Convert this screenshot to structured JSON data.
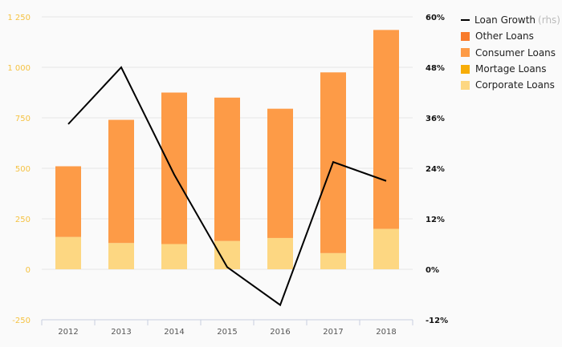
{
  "chart_data": {
    "type": "bar",
    "stacked": true,
    "categories": [
      "2012",
      "2013",
      "2014",
      "2015",
      "2016",
      "2017",
      "2018"
    ],
    "series": [
      {
        "name": "Corporate Loans",
        "color": "#fdd782",
        "values": [
          160,
          130,
          125,
          140,
          155,
          80,
          200
        ]
      },
      {
        "name": "Mortage Loans",
        "color": "#f7ad08",
        "values": [
          0,
          0,
          0,
          0,
          0,
          0,
          0
        ]
      },
      {
        "name": "Consumer Loans",
        "color": "#fd9b47",
        "values": [
          350,
          610,
          750,
          710,
          640,
          895,
          985
        ]
      },
      {
        "name": "Other Loans",
        "color": "#f87b2c",
        "values": [
          0,
          0,
          0,
          0,
          0,
          0,
          0
        ]
      }
    ],
    "line_series": {
      "name": "Loan Growth",
      "axis": "right",
      "color": "#000000",
      "values": [
        34.5,
        48,
        22.5,
        0.5,
        -8.5,
        25.5,
        21
      ]
    },
    "left_axis": {
      "ylim": [
        -250,
        1250
      ],
      "ticks": [
        -250,
        0,
        250,
        500,
        750,
        1000,
        1250
      ],
      "tick_labels": [
        "-250",
        "0",
        "250",
        "500",
        "750",
        "1 000",
        "1 250"
      ],
      "label_color": "#f5c242"
    },
    "right_axis": {
      "ylim": [
        -12,
        60
      ],
      "ticks": [
        -12,
        0,
        12,
        24,
        36,
        48,
        60
      ],
      "tick_labels": [
        "-12%",
        "0%",
        "12%",
        "24%",
        "36%",
        "48%",
        "60%"
      ]
    },
    "grid": true,
    "legend_position": "top-right"
  },
  "legend": {
    "items": [
      {
        "label": "Loan Growth",
        "suffix": "(rhs)",
        "kind": "line",
        "color": "#000000"
      },
      {
        "label": "Other Loans",
        "kind": "box",
        "color": "#f87b2c"
      },
      {
        "label": "Consumer Loans",
        "kind": "box",
        "color": "#fd9b47"
      },
      {
        "label": "Mortage Loans",
        "kind": "box",
        "color": "#f7ad08"
      },
      {
        "label": "Corporate Loans",
        "kind": "box",
        "color": "#fdd782"
      }
    ]
  }
}
